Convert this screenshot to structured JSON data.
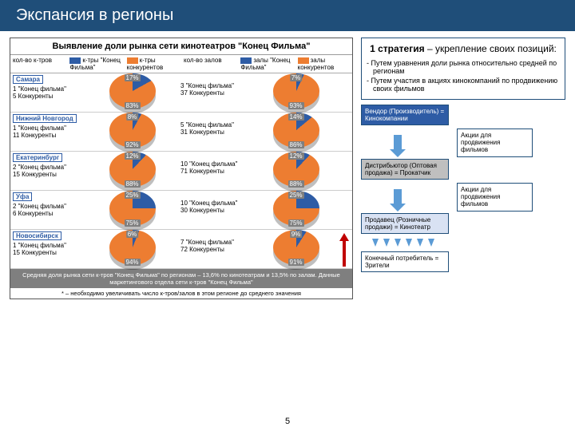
{
  "header": {
    "title": "Экспансия в регионы"
  },
  "left": {
    "title": "Выявление доли рынка сети кинотеатров \"Конец Фильма\"",
    "legend": {
      "col1": "кол-во к-тров",
      "col2_color": "#2e5ca5",
      "col2": "к-тры \"Конец Фильма\"",
      "col3_color": "#ed7d31",
      "col3": "к-тры конкурентов",
      "col4": "кол-во залов",
      "col5_color": "#2e5ca5",
      "col5": "залы \"Конец Фильма\"",
      "col6_color": "#ed7d31",
      "col6": "залы конкурентов"
    },
    "pie_colors": {
      "slice_small": "#2e5ca5",
      "slice_big": "#ed7d31"
    },
    "rows": [
      {
        "city": "Самара",
        "l1": "1 \"Конец фильма\"",
        "l2": "5 Конкуренты",
        "small": "17%",
        "big": "83%",
        "r1": "3 \"Конец фильма\"",
        "r2": "37 Конкуренты",
        "rsmall": "7%",
        "rbig": "93%"
      },
      {
        "city": "Нижний Новгород",
        "l1": "1 \"Конец фильма\"",
        "l2": "11 Конкуренты",
        "small": "8%",
        "big": "92%",
        "r1": "5 \"Конец фильма\"",
        "r2": "31 Конкуренты",
        "rsmall": "14%",
        "rbig": "86%"
      },
      {
        "city": "Екатеринбург",
        "l1": "2 \"Конец фильма\"",
        "l2": "15 Конкуренты",
        "small": "12%",
        "big": "88%",
        "r1": "10 \"Конец фильма\"",
        "r2": "71 Конкуренты",
        "rsmall": "12%",
        "rbig": "88%"
      },
      {
        "city": "Уфа",
        "l1": "2 \"Конец фильма\"",
        "l2": "6 Конкуренты",
        "small": "25%",
        "big": "75%",
        "r1": "10 \"Конец фильма\"",
        "r2": "30 Конкуренты",
        "rsmall": "25%",
        "rbig": "75%"
      },
      {
        "city": "Новосибирск",
        "l1": "1 \"Конец фильма\"",
        "l2": "15 Конкуренты",
        "small": "6%",
        "big": "94%",
        "r1": "7 \"Конец фильма\"",
        "r2": "72 Конкуренты",
        "rsmall": "9%",
        "rbig": "91%"
      }
    ],
    "footer1": "Средняя доля рынка сети к-тров \"Конец Фильма\" по регионам – 13,6% по кинотеатрам и 13,5% по залам. Данные маркетингового отдела сети к-тров \"Конец Фильма\"",
    "footer2": "* – необходимо увеличивать число к-тров/залов в этом регионе до среднего значения"
  },
  "right": {
    "strategy_title_bold": "1 стратегия",
    "strategy_title_rest": " – укрепление своих позиций:",
    "bullets": [
      "Путем уравнения доли рынка относительно средней по регионам",
      "Путем участия в акциях кинокомпаний по продвижению своих фильмов"
    ],
    "chain": {
      "vendor": "Вендор (Производитель) = Кинокомпании",
      "dist": "Дистрибьютор (Оптовая продажа) = Прокатчик",
      "seller": "Продавец (Розничные продажи) = Кинотеатр",
      "consumer": "Конечный потребитель = Зрители",
      "promo": "Акции для продвижения фильмов"
    }
  },
  "pagenum": "5"
}
